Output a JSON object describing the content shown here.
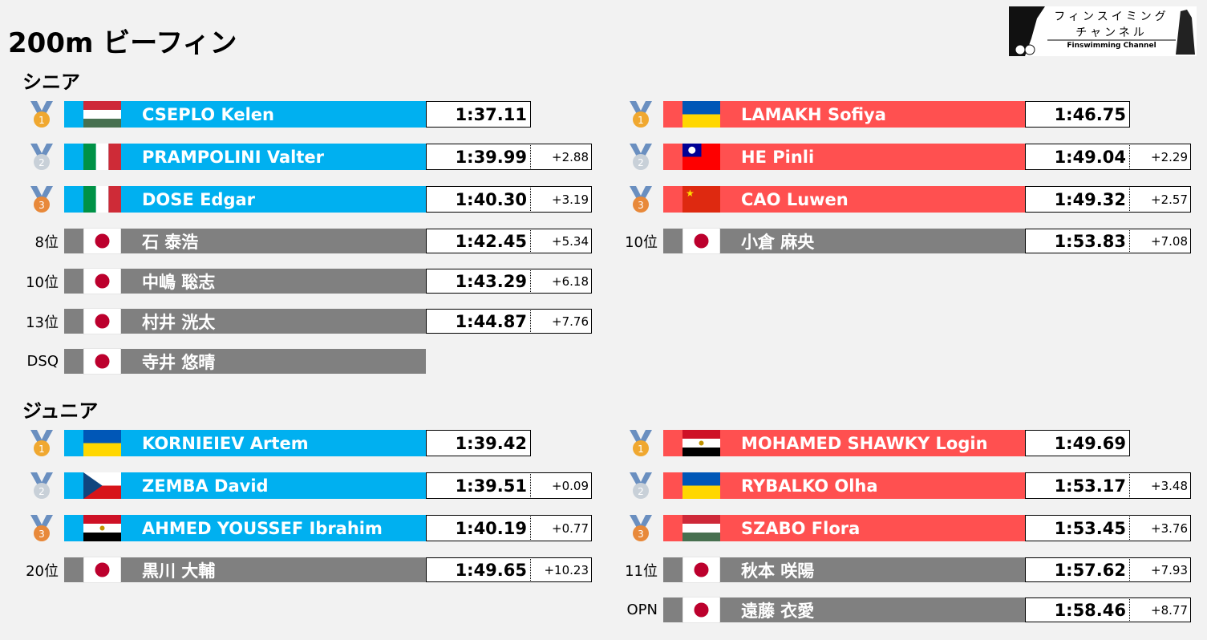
{
  "title": "200m ビーフィン",
  "logo": {
    "line1": "フィンスイミング",
    "line2": "チャンネル",
    "line3": "Finswimming Channel"
  },
  "colors": {
    "left": "#00b0f0",
    "right": "#ff5050",
    "other": "#808080"
  },
  "sections": [
    {
      "name": "シニア",
      "left": [
        {
          "rank": "1",
          "flag": "hu",
          "name": "CSEPLO Kelen",
          "time": "1:37.11"
        },
        {
          "rank": "2",
          "flag": "it",
          "name": "PRAMPOLINI Valter",
          "time": "1:39.99",
          "diff": "+2.88"
        },
        {
          "rank": "3",
          "flag": "it",
          "name": "DOSE Edgar",
          "time": "1:40.30",
          "diff": "+3.19"
        },
        {
          "rank": "8位",
          "flag": "jp",
          "name": "石 泰浩",
          "time": "1:42.45",
          "diff": "+5.34"
        },
        {
          "rank": "10位",
          "flag": "jp",
          "name": "中嶋 聡志",
          "time": "1:43.29",
          "diff": "+6.18"
        },
        {
          "rank": "13位",
          "flag": "jp",
          "name": "村井 洸太",
          "time": "1:44.87",
          "diff": "+7.76"
        },
        {
          "rank": "DSQ",
          "flag": "jp",
          "name": "寺井 悠晴"
        }
      ],
      "right": [
        {
          "rank": "1",
          "flag": "ua",
          "name": "LAMAKH Sofiya",
          "time": "1:46.75"
        },
        {
          "rank": "2",
          "flag": "tw",
          "name": "HE Pinli",
          "time": "1:49.04",
          "diff": "+2.29"
        },
        {
          "rank": "3",
          "flag": "cn",
          "name": "CAO Luwen",
          "time": "1:49.32",
          "diff": "+2.57"
        },
        {
          "rank": "10位",
          "flag": "jp",
          "name": "小倉 麻央",
          "time": "1:53.83",
          "diff": "+7.08"
        }
      ]
    },
    {
      "name": "ジュニア",
      "left": [
        {
          "rank": "1",
          "flag": "ua",
          "name": "KORNIEIEV Artem",
          "time": "1:39.42"
        },
        {
          "rank": "2",
          "flag": "cz",
          "name": "ZEMBA David",
          "time": "1:39.51",
          "diff": "+0.09"
        },
        {
          "rank": "3",
          "flag": "eg",
          "name": "AHMED YOUSSEF Ibrahim",
          "time": "1:40.19",
          "diff": "+0.77"
        },
        {
          "rank": "20位",
          "flag": "jp",
          "name": "黒川 大輔",
          "time": "1:49.65",
          "diff": "+10.23"
        }
      ],
      "right": [
        {
          "rank": "1",
          "flag": "eg",
          "name": "MOHAMED SHAWKY Login",
          "time": "1:49.69"
        },
        {
          "rank": "2",
          "flag": "ua",
          "name": "RYBALKO Olha",
          "time": "1:53.17",
          "diff": "+3.48"
        },
        {
          "rank": "3",
          "flag": "hu",
          "name": "SZABO Flora",
          "time": "1:53.45",
          "diff": "+3.76"
        },
        {
          "rank": "11位",
          "flag": "jp",
          "name": "秋本 咲陽",
          "time": "1:57.62",
          "diff": "+7.93"
        },
        {
          "rank": "OPN",
          "flag": "jp",
          "name": "遠藤 衣愛",
          "time": "1:58.46",
          "diff": "+8.77"
        }
      ]
    }
  ]
}
